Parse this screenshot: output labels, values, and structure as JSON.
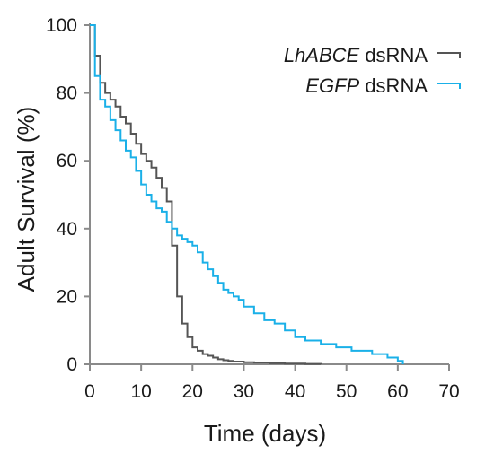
{
  "chart_data": {
    "type": "line",
    "step": true,
    "xlabel": "Time (days)",
    "ylabel": "Adult Survival (%)",
    "xlim": [
      0,
      70
    ],
    "ylim": [
      0,
      100
    ],
    "xticks": [
      0,
      10,
      20,
      30,
      40,
      50,
      60,
      70
    ],
    "yticks": [
      0,
      20,
      40,
      60,
      80,
      100
    ],
    "grid": false,
    "legend_position": "top-right",
    "series": [
      {
        "name_italic": "LhABCE",
        "name_rest": " dsRNA",
        "color": "#555555",
        "x": [
          0,
          1,
          2,
          3,
          4,
          5,
          6,
          7,
          8,
          9,
          10,
          11,
          12,
          13,
          14,
          15,
          16,
          17,
          18,
          19,
          20,
          21,
          22,
          23,
          24,
          25,
          26,
          27,
          28,
          30,
          32,
          35,
          38,
          42,
          45
        ],
        "y": [
          100,
          91,
          83,
          80,
          78,
          76,
          73,
          71,
          68,
          65,
          62,
          60,
          58,
          55,
          52,
          48,
          35,
          20,
          12,
          8,
          5,
          4,
          3,
          2.5,
          2,
          1.5,
          1.2,
          1,
          0.8,
          0.6,
          0.5,
          0.3,
          0.2,
          0.1,
          0
        ]
      },
      {
        "name_italic": "EGFP",
        "name_rest": " dsRNA",
        "color": "#1ab0e8",
        "x": [
          0,
          1,
          2,
          3,
          4,
          5,
          6,
          7,
          8,
          9,
          10,
          11,
          12,
          13,
          14,
          15,
          16,
          17,
          18,
          19,
          20,
          21,
          22,
          23,
          24,
          25,
          26,
          27,
          28,
          29,
          30,
          32,
          34,
          36,
          38,
          40,
          42,
          45,
          48,
          51,
          55,
          58,
          60,
          61
        ],
        "y": [
          100,
          85,
          78,
          76,
          72,
          69,
          66,
          63,
          61,
          57,
          53,
          50,
          48,
          46,
          45,
          42,
          40,
          38,
          37,
          36,
          35,
          33,
          30,
          28,
          26,
          24,
          22,
          21,
          20,
          19,
          17,
          15,
          13,
          12,
          10,
          8,
          7,
          6,
          5,
          4,
          3,
          2,
          1,
          0
        ]
      }
    ]
  }
}
